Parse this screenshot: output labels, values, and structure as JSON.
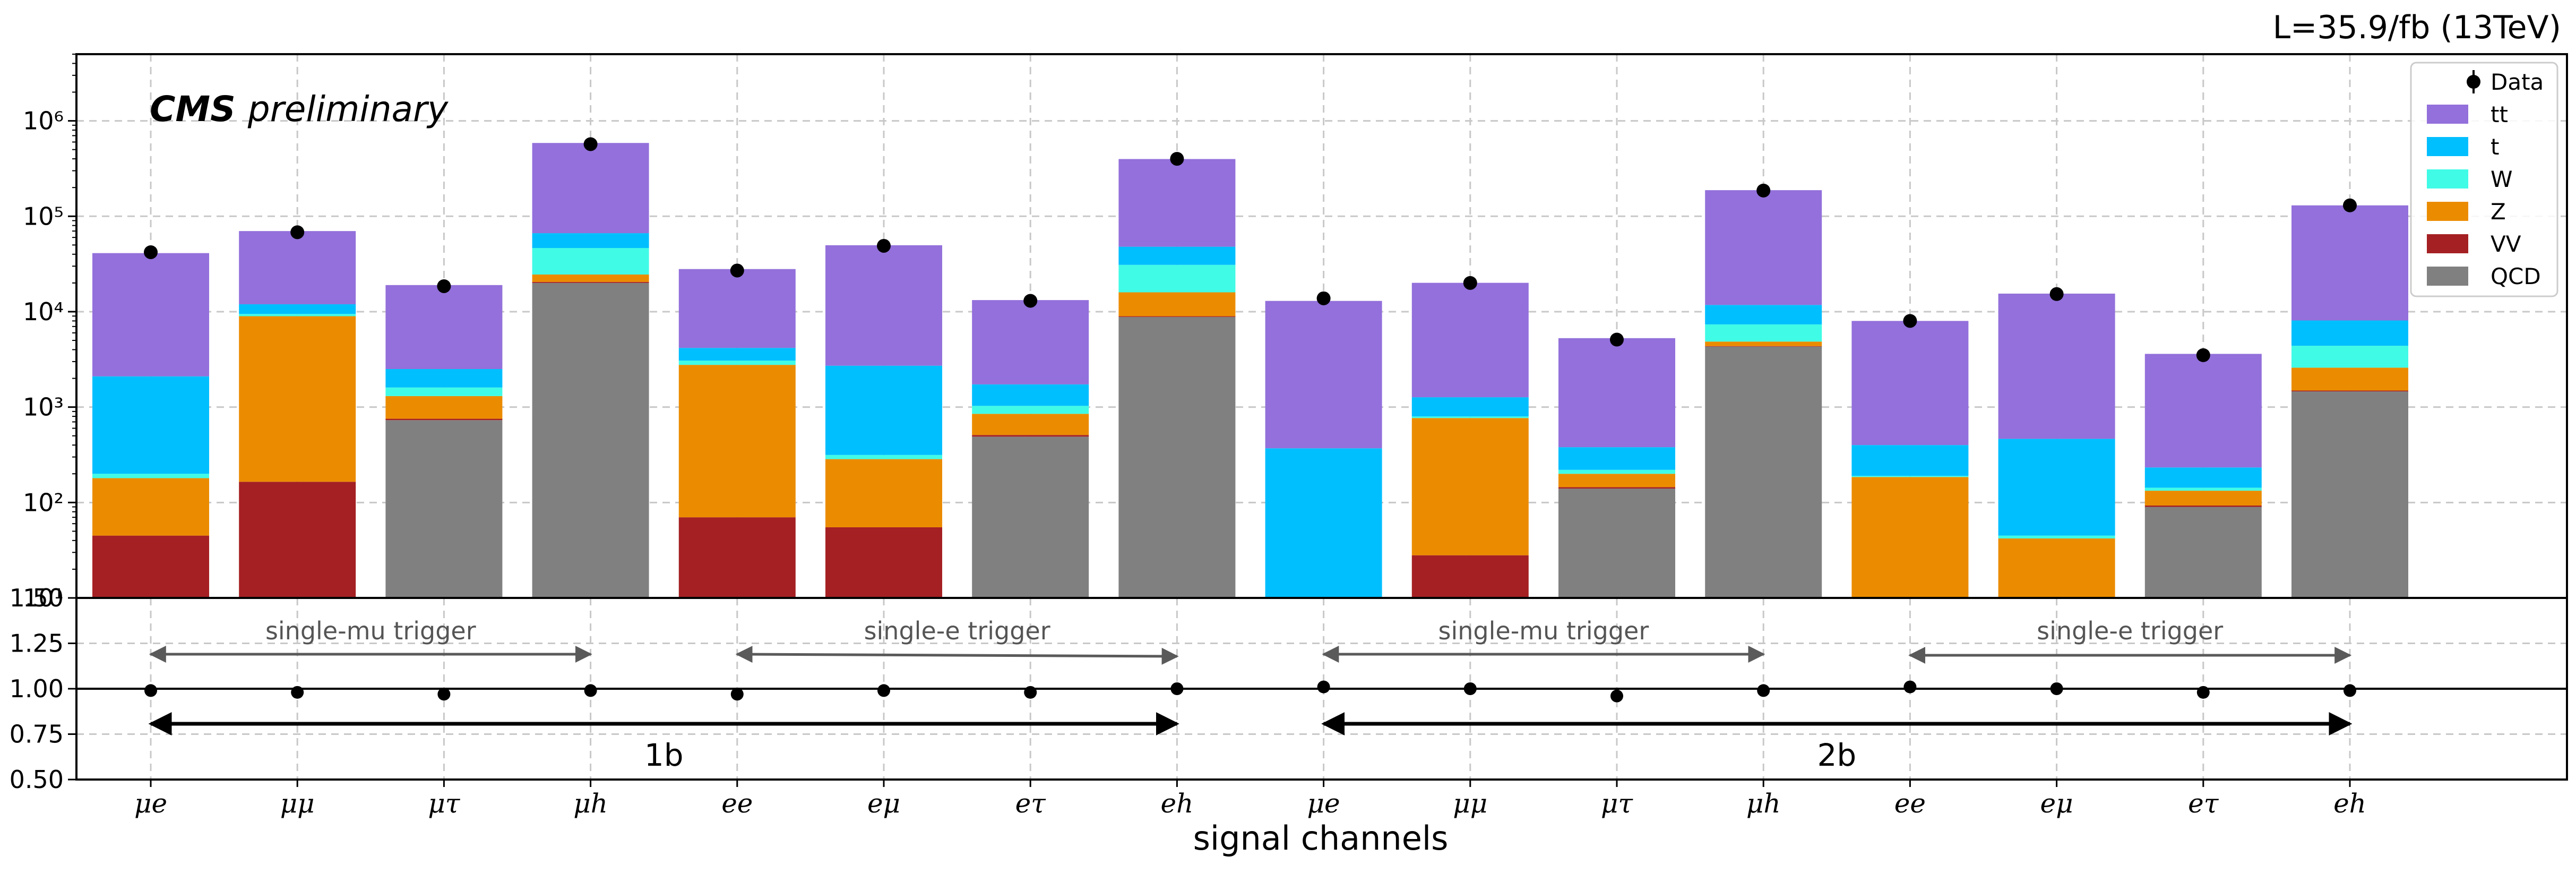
{
  "chart_data": [
    {
      "type": "bar",
      "stacked": true,
      "log_scale_y": true,
      "ylim": [
        10,
        5000000
      ],
      "grid": true,
      "legend_position": "top-right",
      "corner_label": "L=35.9/fb (13TeV)",
      "watermark": {
        "bold": "CMS",
        "italic": "preliminary"
      },
      "xlabel": "signal channels",
      "categories": [
        "μe",
        "μμ",
        "μτ",
        "μh",
        "ee",
        "eμ",
        "eτ",
        "eh",
        "μe",
        "μμ",
        "μτ",
        "μh",
        "ee",
        "eμ",
        "eτ",
        "eh"
      ],
      "y_tick_labels": [
        "10¹",
        "10²",
        "10³",
        "10⁴",
        "10⁵",
        "10⁶"
      ],
      "legend": [
        "Data",
        "tt",
        "t",
        "W",
        "Z",
        "VV",
        "QCD"
      ],
      "colors": {
        "tt": "#9370db",
        "t": "#00bfff",
        "W": "#40fbe6",
        "Z": "#eb8c00",
        "VV": "#a52023",
        "QCD": "#808080"
      },
      "series": [
        {
          "name": "QCD",
          "color": "#808080",
          "values": [
            0,
            0,
            720,
            20000,
            0,
            0,
            480,
            8800,
            0,
            0,
            130,
            4300,
            0,
            0,
            80,
            1450
          ]
        },
        {
          "name": "VV",
          "color": "#a52023",
          "values": [
            35,
            155,
            25,
            500,
            60,
            45,
            20,
            150,
            0,
            18,
            5,
            50,
            0,
            0,
            3,
            30
          ]
        },
        {
          "name": "Z",
          "color": "#eb8c00",
          "values": [
            135,
            8800,
            550,
            4000,
            2700,
            230,
            340,
            7000,
            0,
            740,
            55,
            500,
            175,
            32,
            40,
            1100
          ]
        },
        {
          "name": "W",
          "color": "#40fbe6",
          "values": [
            20,
            500,
            300,
            22000,
            300,
            30,
            180,
            15000,
            0,
            30,
            20,
            2500,
            5,
            3,
            10,
            1800
          ]
        },
        {
          "name": "t",
          "color": "#00bfff",
          "values": [
            1900,
            2500,
            900,
            20000,
            1100,
            2400,
            700,
            17000,
            360,
            470,
            160,
            4400,
            210,
            420,
            90,
            3700
          ]
        },
        {
          "name": "tt",
          "color": "#9370db",
          "values": [
            39000,
            58000,
            16500,
            520000,
            23800,
            47000,
            11500,
            350000,
            12600,
            18800,
            4900,
            176000,
            7600,
            15000,
            3380,
            122000
          ]
        }
      ],
      "data_points": {
        "name": "Data",
        "values": [
          42000,
          68000,
          18500,
          570000,
          27000,
          49000,
          13000,
          400000,
          13800,
          20000,
          5100,
          186000,
          8000,
          15300,
          3500,
          130000
        ]
      }
    },
    {
      "type": "scatter",
      "ylim": [
        0.5,
        1.5
      ],
      "y_ticks": [
        "0.50",
        "0.75",
        "1.00",
        "1.25",
        "1.50"
      ],
      "reference_line": 1.0,
      "categories": [
        "μe",
        "μμ",
        "μτ",
        "μh",
        "ee",
        "eμ",
        "eτ",
        "eh",
        "μe",
        "μμ",
        "μτ",
        "μh",
        "ee",
        "eμ",
        "eτ",
        "eh"
      ],
      "values": [
        0.99,
        0.98,
        0.97,
        0.99,
        0.97,
        0.99,
        0.98,
        1.0,
        1.01,
        1.0,
        0.96,
        0.99,
        1.01,
        1.0,
        0.98,
        0.99
      ],
      "trigger_annotations": [
        "single-mu trigger",
        "single-e trigger",
        "single-mu trigger",
        "single-e trigger"
      ],
      "group_annotations": [
        "1b",
        "2b"
      ]
    }
  ]
}
